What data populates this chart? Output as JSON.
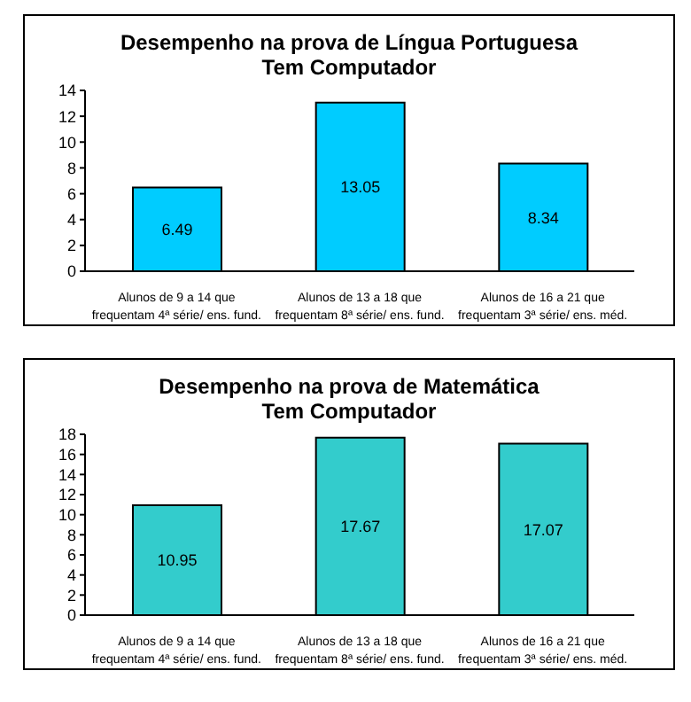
{
  "chart_data": [
    {
      "type": "bar",
      "title": "Desempenho na prova de Língua Portuguesa",
      "subtitle": "Tem Computador",
      "categories": [
        "Alunos de 9 a 14 que frequentam 4ª série/ ens. fund.",
        "Alunos de 13 a 18 que frequentam 8ª série/ ens. fund.",
        "Alunos de 16 a 21 que frequentam 3ª série/ ens. méd."
      ],
      "values": [
        6.49,
        13.05,
        8.34
      ],
      "color": "#00ccff",
      "ylim": [
        0,
        14
      ],
      "yticks": [
        0,
        2,
        4,
        6,
        8,
        10,
        12,
        14
      ],
      "data_labels": true,
      "grid": false,
      "legend": false
    },
    {
      "type": "bar",
      "title": "Desempenho na prova de Matemática",
      "subtitle": "Tem Computador",
      "categories": [
        "Alunos de 9 a 14 que frequentam 4ª série/ ens. fund.",
        "Alunos de 13 a 18 que frequentam 8ª série/ ens. fund.",
        "Alunos de 16 a 21 que frequentam 3ª série/ ens. méd."
      ],
      "values": [
        10.95,
        17.67,
        17.07
      ],
      "color": "#33cccc",
      "ylim": [
        0,
        18
      ],
      "yticks": [
        0,
        2,
        4,
        6,
        8,
        10,
        12,
        14,
        16,
        18
      ],
      "data_labels": true,
      "grid": false,
      "legend": false
    }
  ]
}
